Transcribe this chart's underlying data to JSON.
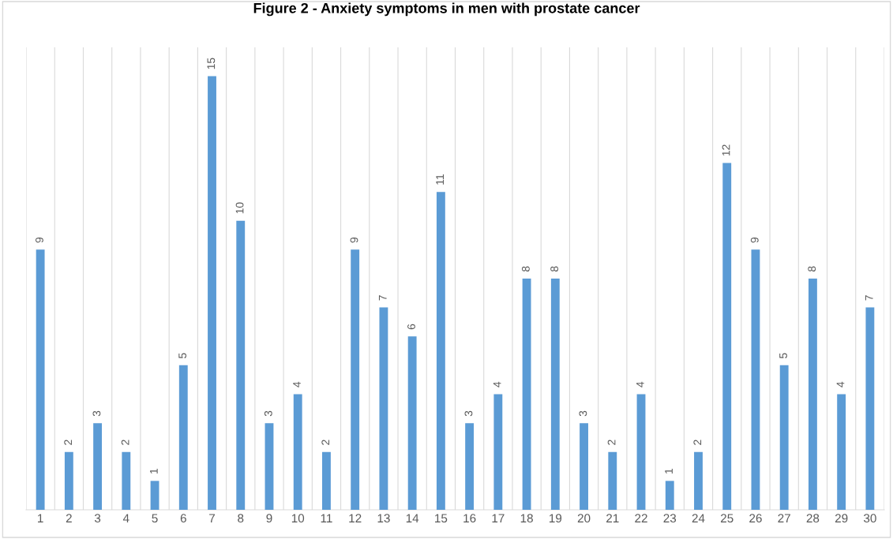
{
  "chart_data": {
    "type": "bar",
    "title": "Figure 2 - Anxiety symptoms in men with prostate cancer",
    "categories": [
      "1",
      "2",
      "3",
      "4",
      "5",
      "6",
      "7",
      "8",
      "9",
      "10",
      "11",
      "12",
      "13",
      "14",
      "15",
      "16",
      "17",
      "18",
      "19",
      "20",
      "21",
      "22",
      "23",
      "24",
      "25",
      "26",
      "27",
      "28",
      "29",
      "30"
    ],
    "values": [
      9,
      2,
      3,
      2,
      1,
      5,
      15,
      10,
      3,
      4,
      2,
      9,
      7,
      6,
      11,
      3,
      4,
      8,
      8,
      3,
      2,
      4,
      1,
      2,
      12,
      9,
      5,
      8,
      4,
      7
    ],
    "color": "#5b9bd5",
    "ylim": [
      0,
      16
    ],
    "data_labels": true,
    "grid": "x",
    "tick_labels": "x"
  }
}
